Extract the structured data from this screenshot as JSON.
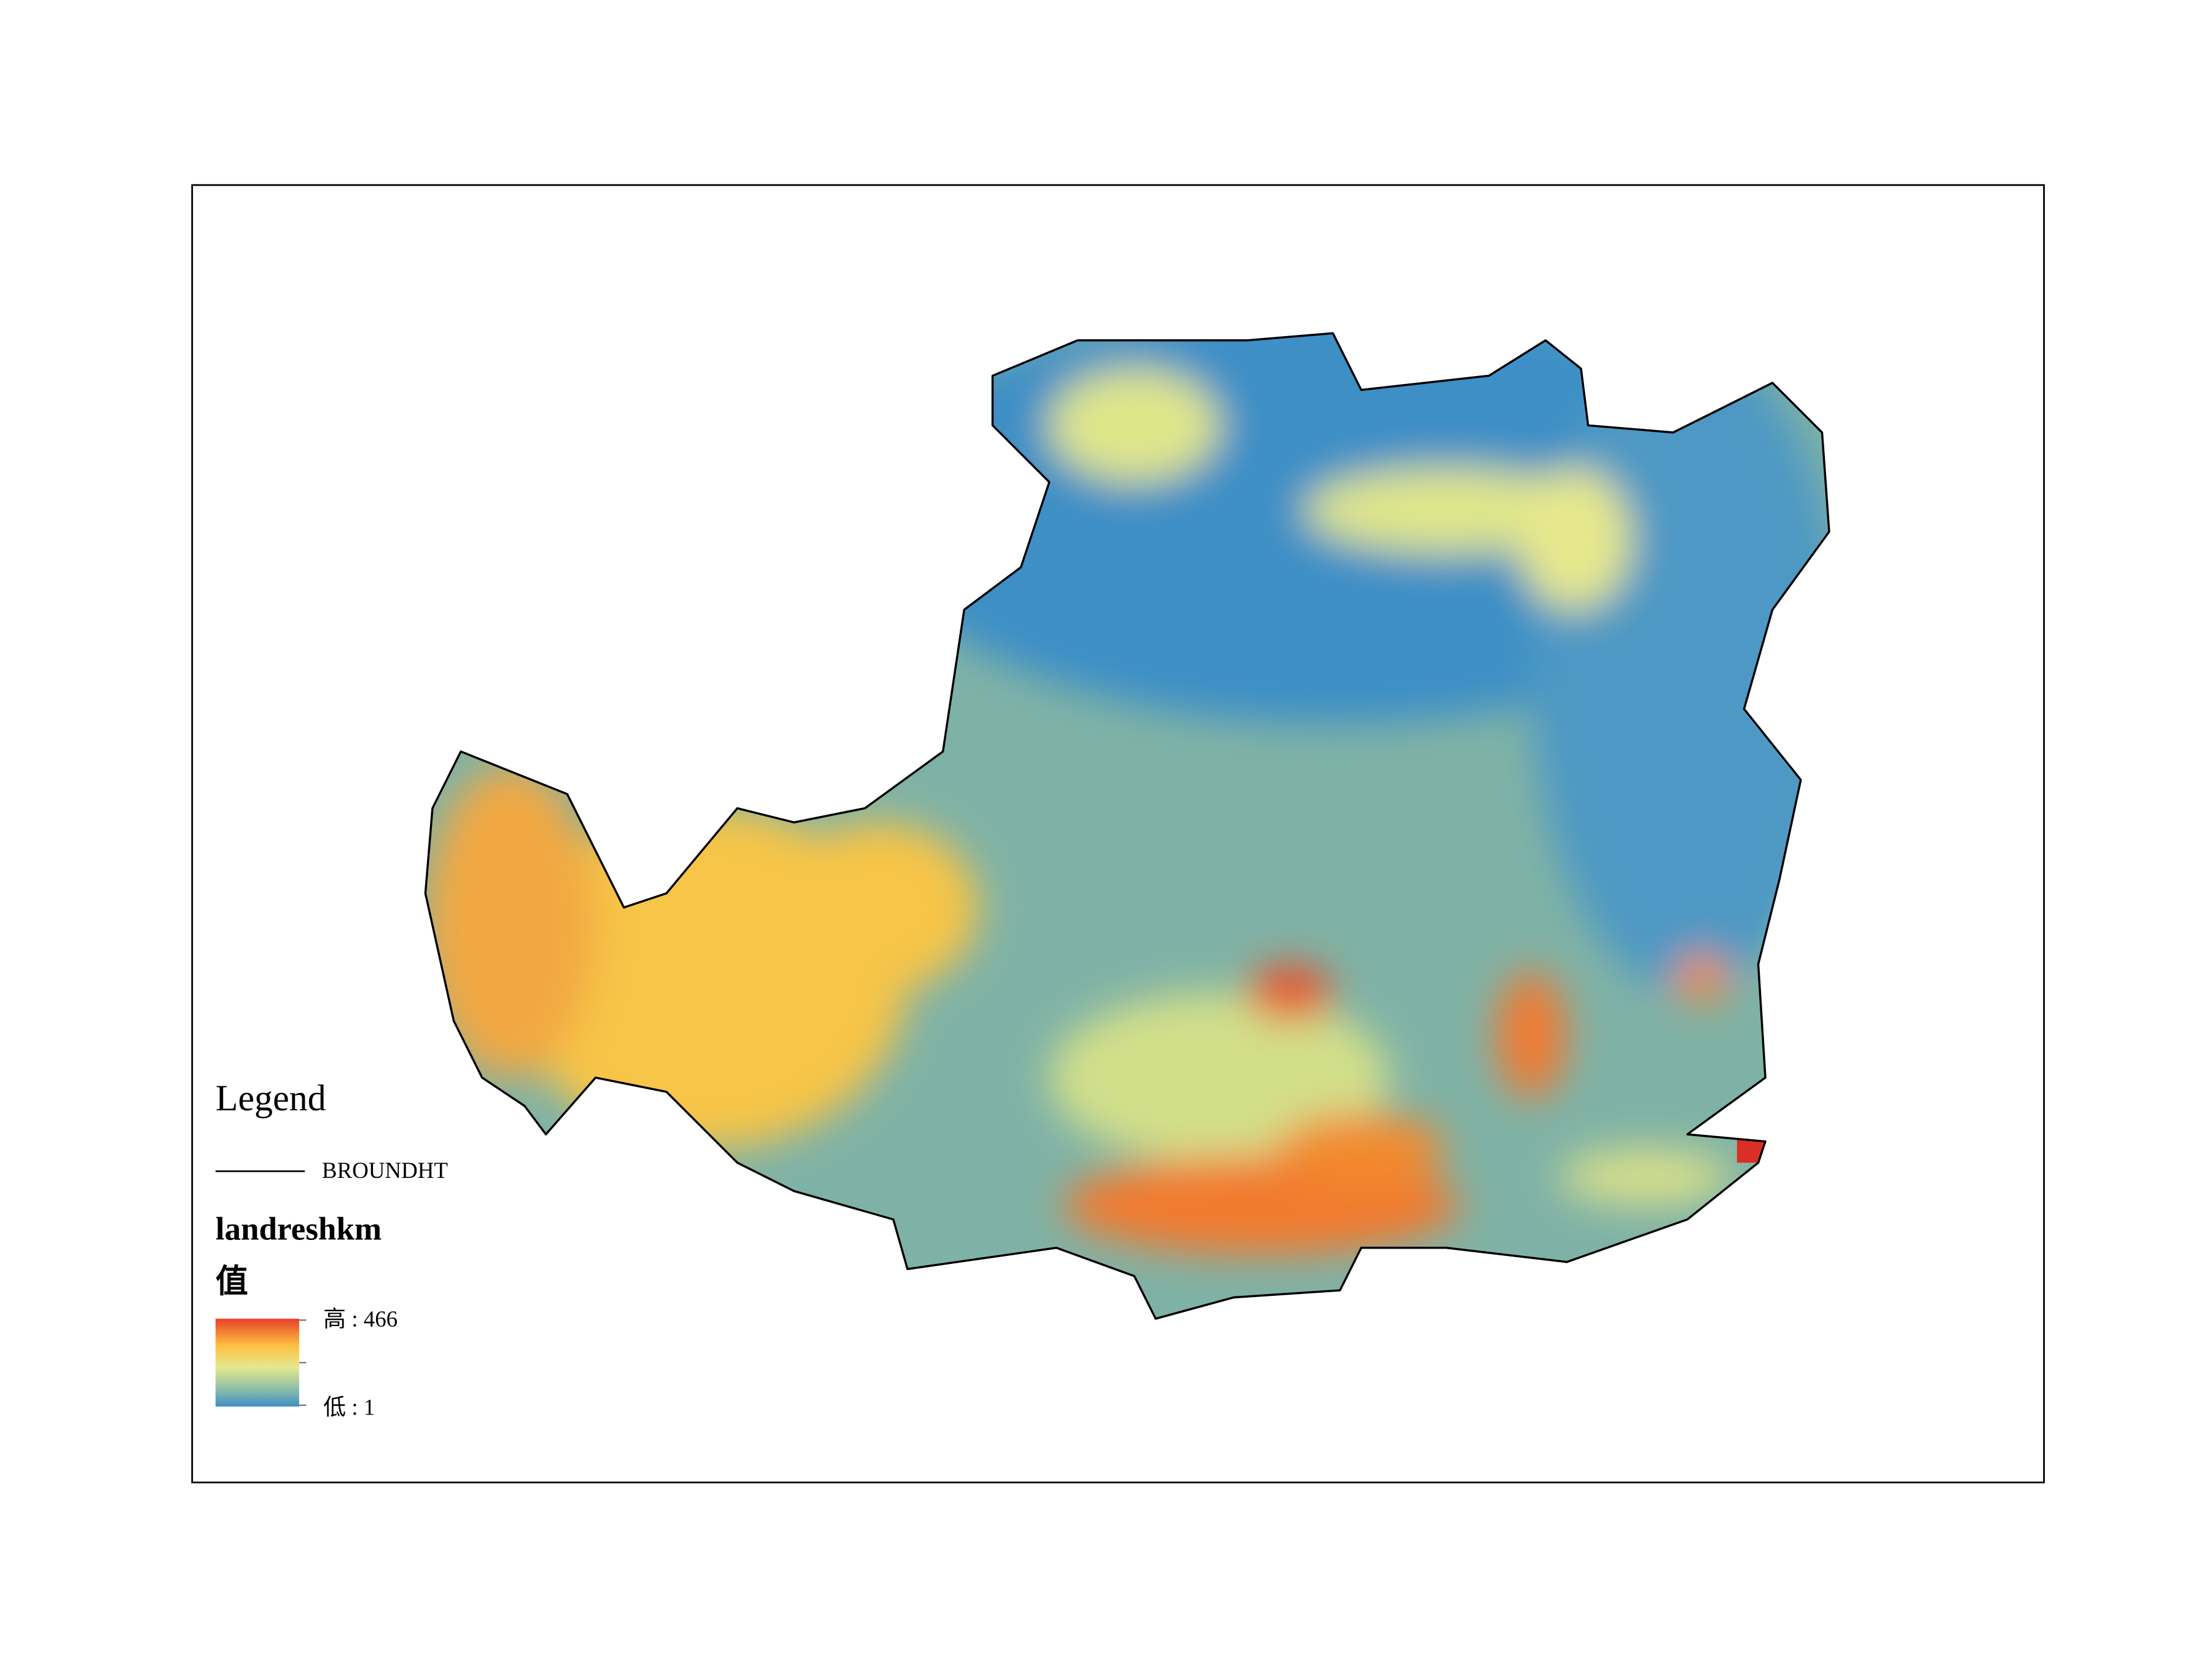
{
  "legend": {
    "title": "Legend",
    "layers": [
      {
        "name": "BROUNDHT"
      },
      {
        "name": "landreshkm",
        "field": "值",
        "high": "高 : 466",
        "low": "低 : 1"
      }
    ]
  }
}
